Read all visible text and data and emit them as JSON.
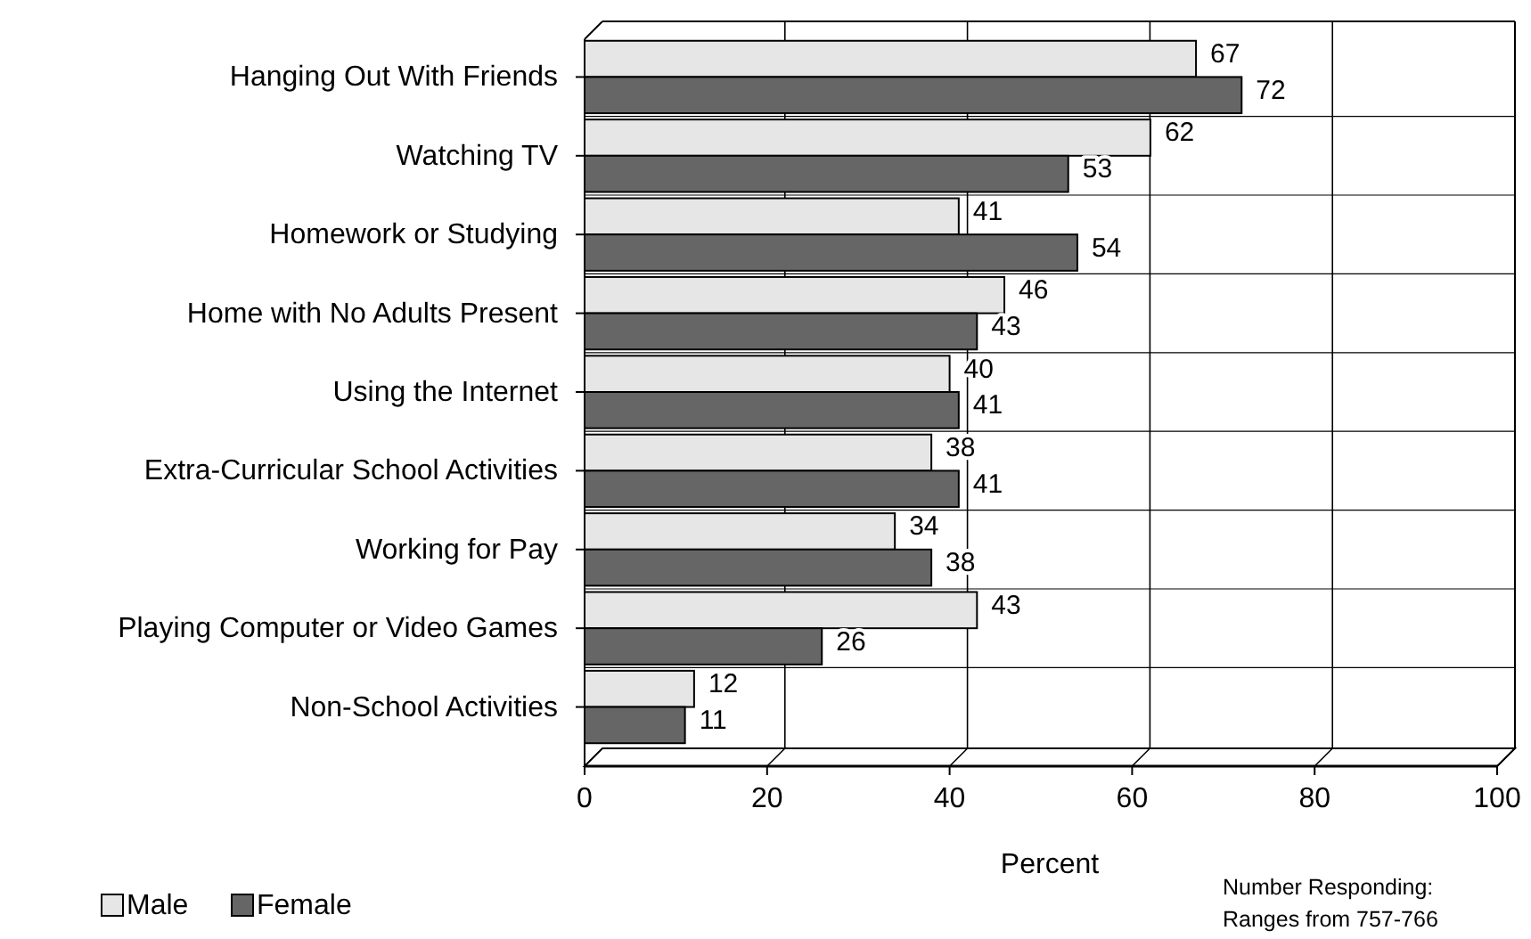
{
  "chart_data": {
    "type": "bar",
    "orientation": "horizontal",
    "categories": [
      "Hanging Out With Friends",
      "Watching TV",
      "Homework or Studying",
      "Home with No Adults Present",
      "Using the Internet",
      "Extra-Curricular School Activities",
      "Working for Pay",
      "Playing Computer or Video Games",
      "Non-School Activities"
    ],
    "series": [
      {
        "name": "Male",
        "color": "#e6e6e6",
        "values": [
          67,
          62,
          41,
          46,
          40,
          38,
          34,
          43,
          12
        ]
      },
      {
        "name": "Female",
        "color": "#666666",
        "values": [
          72,
          53,
          54,
          43,
          41,
          41,
          38,
          26,
          11
        ]
      }
    ],
    "xlim": [
      0,
      100
    ],
    "xticks": [
      0,
      20,
      40,
      60,
      80,
      100
    ],
    "xlabel": "Percent",
    "grid": "x",
    "legend": "bottom left",
    "data_labels": true,
    "annotations": [
      "Number Responding:\nRanges from 757-766"
    ]
  }
}
